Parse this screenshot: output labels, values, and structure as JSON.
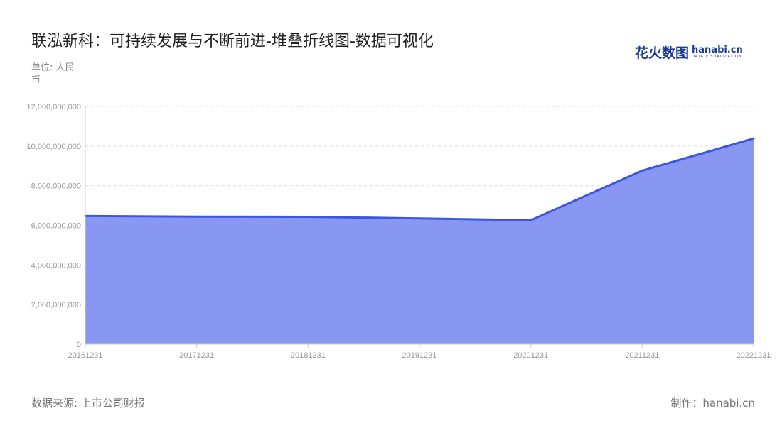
{
  "title": "联泓新科：可持续发展与不断前进-堆叠折线图-数据可视化",
  "unit_label": "单位: 人民币",
  "logo": {
    "cn": "花火数图",
    "en": "hanabi.cn",
    "sub": "DATA VISUALIZATION"
  },
  "source": "数据来源: 上市公司财报",
  "maker": "制作：hanabi.cn",
  "colors": {
    "line": "#3b55e6",
    "area": "#8898f2",
    "grid": "#dddddd"
  },
  "chart_data": {
    "type": "area",
    "stacked": true,
    "categories": [
      "20161231",
      "20171231",
      "20181231",
      "20191231",
      "20201231",
      "20211231",
      "20221231"
    ],
    "series": [
      {
        "values": [
          6470000000,
          6440000000,
          6430000000,
          6350000000,
          6260000000,
          8760000000,
          10380000000
        ]
      }
    ],
    "ylim": [
      0,
      12000000000
    ],
    "yticks": [
      "0",
      "2,000,000,000",
      "4,000,000,000",
      "6,000,000,000",
      "8,000,000,000",
      "10,000,000,000",
      "12,000,000,000"
    ],
    "grid": true,
    "grid_style": "dashed",
    "legend": "none"
  }
}
